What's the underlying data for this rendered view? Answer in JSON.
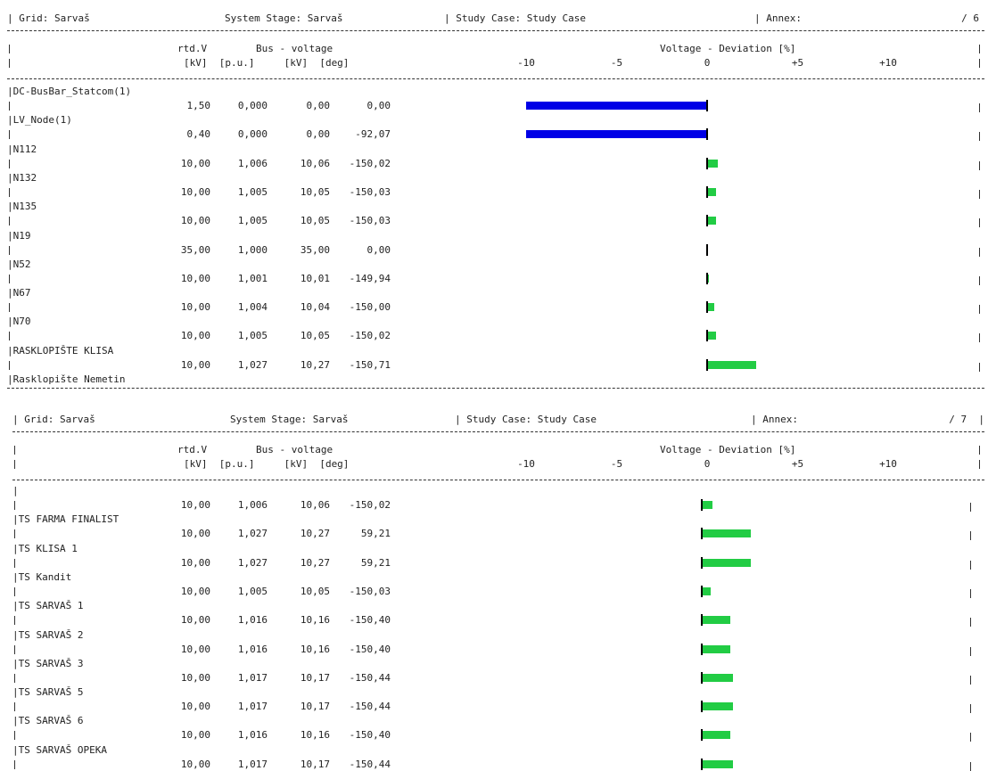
{
  "colors": {
    "negative": "#0000e6",
    "positive": "#22cc44"
  },
  "sections": [
    {
      "header": {
        "grid": "| Grid: Sarvaš",
        "stage": "System Stage: Sarvaš",
        "case": "| Study Case: Study Case",
        "annex": "| Annex:",
        "page": "/ 6"
      },
      "columns": {
        "rtd_v": "rtd.V",
        "bus_voltage": "Bus - voltage",
        "units": "[kV]  [p.u.]     [kV]  [deg]",
        "deviation_title": "Voltage - Deviation [%]",
        "ticks": [
          "-10",
          "-5",
          "0",
          "+5",
          "+10"
        ]
      },
      "rows": [
        {
          "name": "|DC-BusBar_Statcom(1)",
          "rtd": "1,50",
          "pu": "0,000",
          "kv": "0,00",
          "deg": "0,00",
          "dev": -10.0
        },
        {
          "name": "|LV_Node(1)",
          "rtd": "0,40",
          "pu": "0,000",
          "kv": "0,00",
          "deg": "-92,07",
          "dev": -10.0
        },
        {
          "name": "|N112",
          "rtd": "10,00",
          "pu": "1,006",
          "kv": "10,06",
          "deg": "-150,02",
          "dev": 0.6
        },
        {
          "name": "|N132",
          "rtd": "10,00",
          "pu": "1,005",
          "kv": "10,05",
          "deg": "-150,03",
          "dev": 0.5
        },
        {
          "name": "|N135",
          "rtd": "10,00",
          "pu": "1,005",
          "kv": "10,05",
          "deg": "-150,03",
          "dev": 0.5
        },
        {
          "name": "|N19",
          "rtd": "35,00",
          "pu": "1,000",
          "kv": "35,00",
          "deg": "0,00",
          "dev": 0.0
        },
        {
          "name": "|N52",
          "rtd": "10,00",
          "pu": "1,001",
          "kv": "10,01",
          "deg": "-149,94",
          "dev": 0.1
        },
        {
          "name": "|N67",
          "rtd": "10,00",
          "pu": "1,004",
          "kv": "10,04",
          "deg": "-150,00",
          "dev": 0.4
        },
        {
          "name": "|N70",
          "rtd": "10,00",
          "pu": "1,005",
          "kv": "10,05",
          "deg": "-150,02",
          "dev": 0.5
        },
        {
          "name": "|RASKLOPIŠTE KLISA",
          "rtd": "10,00",
          "pu": "1,027",
          "kv": "10,27",
          "deg": "-150,71",
          "dev": 2.7
        }
      ],
      "trailing_name": "|Rasklopište Nemetin"
    },
    {
      "header": {
        "grid": "| Grid: Sarvaš",
        "stage": "System Stage: Sarvaš",
        "case": "| Study Case: Study Case",
        "annex": "| Annex:",
        "page": "/ 7  |"
      },
      "columns": {
        "rtd_v": "rtd.V",
        "bus_voltage": "Bus - voltage",
        "units": "[kV]  [p.u.]     [kV]  [deg]",
        "deviation_title": "Voltage - Deviation [%]",
        "ticks": [
          "-10",
          "-5",
          "0",
          "+5",
          "+10"
        ]
      },
      "rows": [
        {
          "name": "|",
          "rtd": "10,00",
          "pu": "1,006",
          "kv": "10,06",
          "deg": "-150,02",
          "dev": 0.6
        },
        {
          "name": "|TS FARMA FINALIST",
          "rtd": "10,00",
          "pu": "1,027",
          "kv": "10,27",
          "deg": "59,21",
          "dev": 2.7
        },
        {
          "name": "|TS KLISA 1",
          "rtd": "10,00",
          "pu": "1,027",
          "kv": "10,27",
          "deg": "59,21",
          "dev": 2.7
        },
        {
          "name": "|TS Kandit",
          "rtd": "10,00",
          "pu": "1,005",
          "kv": "10,05",
          "deg": "-150,03",
          "dev": 0.5
        },
        {
          "name": "|TS SARVAŠ 1",
          "rtd": "10,00",
          "pu": "1,016",
          "kv": "10,16",
          "deg": "-150,40",
          "dev": 1.6
        },
        {
          "name": "|TS SARVAŠ 2",
          "rtd": "10,00",
          "pu": "1,016",
          "kv": "10,16",
          "deg": "-150,40",
          "dev": 1.6
        },
        {
          "name": "|TS SARVAŠ 3",
          "rtd": "10,00",
          "pu": "1,017",
          "kv": "10,17",
          "deg": "-150,44",
          "dev": 1.7
        },
        {
          "name": "|TS SARVAŠ 5",
          "rtd": "10,00",
          "pu": "1,017",
          "kv": "10,17",
          "deg": "-150,44",
          "dev": 1.7
        },
        {
          "name": "|TS SARVAŠ 6",
          "rtd": "10,00",
          "pu": "1,016",
          "kv": "10,16",
          "deg": "-150,40",
          "dev": 1.6
        },
        {
          "name": "|TS SARVAŠ OPEKA",
          "rtd": "10,00",
          "pu": "1,017",
          "kv": "10,17",
          "deg": "-150,44",
          "dev": 1.7
        }
      ],
      "trailing_name": ""
    }
  ]
}
